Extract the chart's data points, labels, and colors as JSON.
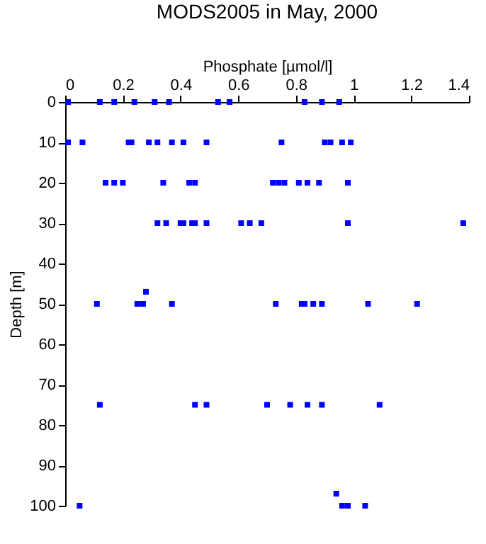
{
  "chart_data": {
    "type": "scatter",
    "title": "MODS2005 in May, 2000",
    "xlabel": "Phosphate [µmol/l]",
    "ylabel": "Depth [m]",
    "x": [
      0.01,
      0.12,
      0.17,
      0.24,
      0.31,
      0.36,
      0.53,
      0.57,
      0.83,
      0.89,
      0.95,
      0.01,
      0.06,
      0.22,
      0.23,
      0.29,
      0.32,
      0.37,
      0.41,
      0.49,
      0.75,
      0.9,
      0.92,
      0.96,
      0.99,
      0.14,
      0.17,
      0.2,
      0.34,
      0.43,
      0.45,
      0.72,
      0.74,
      0.76,
      0.81,
      0.84,
      0.88,
      0.98,
      0.32,
      0.35,
      0.4,
      0.41,
      0.44,
      0.45,
      0.49,
      0.61,
      0.64,
      0.68,
      0.98,
      1.38,
      0.28,
      0.11,
      0.25,
      0.27,
      0.37,
      0.73,
      0.82,
      0.83,
      0.86,
      0.89,
      1.05,
      1.22,
      0.12,
      0.45,
      0.49,
      0.7,
      0.78,
      0.84,
      0.89,
      1.09,
      0.94,
      0.05,
      0.96,
      0.98,
      1.04
    ],
    "series": [
      {
        "color": "#0000ff",
        "values": [
          0,
          0,
          0,
          0,
          0,
          0,
          0,
          0,
          0,
          0,
          0,
          10,
          10,
          10,
          10,
          10,
          10,
          10,
          10,
          10,
          10,
          10,
          10,
          10,
          10,
          20,
          20,
          20,
          20,
          20,
          20,
          20,
          20,
          20,
          20,
          20,
          20,
          20,
          30,
          30,
          30,
          30,
          30,
          30,
          30,
          30,
          30,
          30,
          30,
          30,
          47,
          50,
          50,
          50,
          50,
          50,
          50,
          50,
          50,
          50,
          50,
          50,
          75,
          75,
          75,
          75,
          75,
          75,
          75,
          75,
          97,
          100,
          100,
          100,
          100
        ]
      }
    ],
    "xlim": [
      0,
      1.4
    ],
    "xticks": [
      0,
      0.2,
      0.4,
      0.6,
      0.8,
      1,
      1.2,
      1.4
    ],
    "ylim": [
      100,
      0
    ],
    "yticks": [
      0,
      10,
      20,
      30,
      40,
      50,
      60,
      70,
      80,
      90,
      100
    ],
    "marker": "square",
    "grid": false
  }
}
